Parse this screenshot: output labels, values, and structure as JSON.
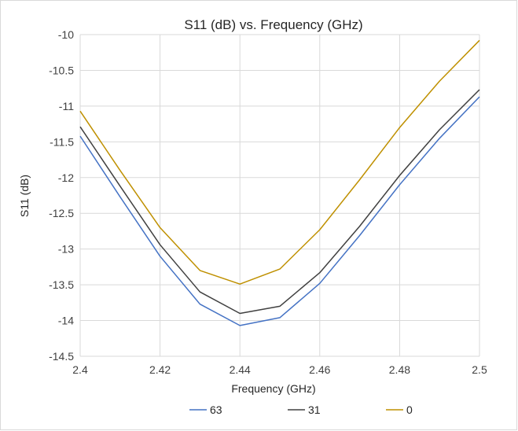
{
  "chart_data": {
    "type": "line",
    "title": "S11 (dB) vs. Frequency (GHz)",
    "xlabel": "Frequency (GHz)",
    "ylabel": "S11 (dB)",
    "x": [
      2.4,
      2.41,
      2.42,
      2.43,
      2.44,
      2.45,
      2.46,
      2.47,
      2.48,
      2.49,
      2.5
    ],
    "xlim": [
      2.4,
      2.5
    ],
    "ylim": [
      -14.5,
      -10
    ],
    "x_ticks": [
      "2.4",
      "2.42",
      "2.44",
      "2.46",
      "2.48",
      "2.5"
    ],
    "y_ticks": [
      "-10",
      "-10.5",
      "-11",
      "-11.5",
      "-12",
      "-12.5",
      "-13",
      "-13.5",
      "-14",
      "-14.5"
    ],
    "grid": true,
    "legend_position": "bottom",
    "series": [
      {
        "name": "63",
        "color": "#4472c4",
        "values": [
          -11.42,
          -12.27,
          -13.1,
          -13.77,
          -14.07,
          -13.96,
          -13.48,
          -12.81,
          -12.1,
          -11.45,
          -10.87
        ]
      },
      {
        "name": "31",
        "color": "#404040",
        "values": [
          -11.29,
          -12.12,
          -12.94,
          -13.6,
          -13.9,
          -13.8,
          -13.33,
          -12.68,
          -11.97,
          -11.33,
          -10.77
        ]
      },
      {
        "name": "0",
        "color": "#bf9000",
        "values": [
          -11.07,
          -11.9,
          -12.7,
          -13.3,
          -13.49,
          -13.28,
          -12.73,
          -12.03,
          -11.3,
          -10.65,
          -10.08
        ]
      }
    ]
  }
}
